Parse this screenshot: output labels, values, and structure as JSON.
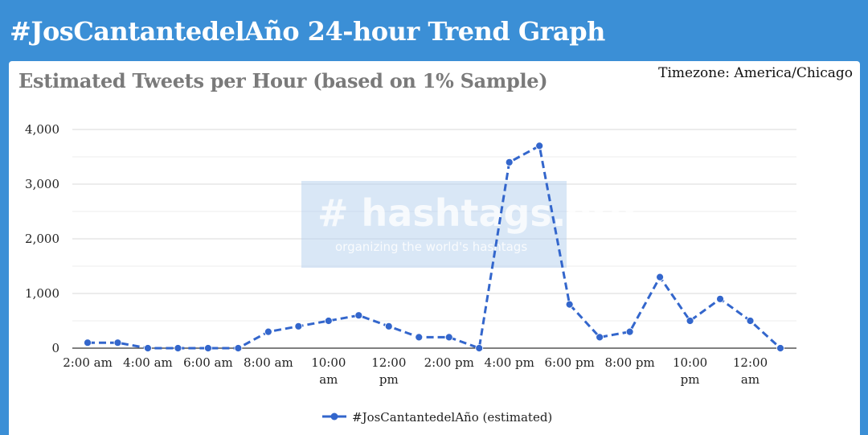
{
  "header": {
    "title": "#JosCantantedelAño 24-hour Trend Graph"
  },
  "panel": {
    "subtitle": "Estimated Tweets per Hour (based on 1% Sample)",
    "timezone": "Timezone: America/Chicago"
  },
  "watermark": {
    "brand": "# hashtags.org",
    "tagline": "organizing the world's hashtags"
  },
  "colors": {
    "header_bg": "#3b8fd6",
    "series": "#3366cc",
    "grid": "#d9d9d9"
  },
  "chart_data": {
    "type": "line",
    "x": [
      "2:00 am",
      "3:00 am",
      "4:00 am",
      "5:00 am",
      "6:00 am",
      "7:00 am",
      "8:00 am",
      "9:00 am",
      "10:00 am",
      "11:00 am",
      "12:00 pm",
      "1:00 pm",
      "2:00 pm",
      "3:00 pm",
      "4:00 pm",
      "5:00 pm",
      "6:00 pm",
      "7:00 pm",
      "8:00 pm",
      "9:00 pm",
      "10:00 pm",
      "11:00 pm",
      "12:00 am",
      "1:00 am"
    ],
    "x_tick_labels": [
      {
        "index": 0,
        "lines": [
          "2:00 am"
        ]
      },
      {
        "index": 2,
        "lines": [
          "4:00 am"
        ]
      },
      {
        "index": 4,
        "lines": [
          "6:00 am"
        ]
      },
      {
        "index": 6,
        "lines": [
          "8:00 am"
        ]
      },
      {
        "index": 8,
        "lines": [
          "10:00",
          "am"
        ]
      },
      {
        "index": 10,
        "lines": [
          "12:00",
          "pm"
        ]
      },
      {
        "index": 12,
        "lines": [
          "2:00 pm"
        ]
      },
      {
        "index": 14,
        "lines": [
          "4:00 pm"
        ]
      },
      {
        "index": 16,
        "lines": [
          "6:00 pm"
        ]
      },
      {
        "index": 18,
        "lines": [
          "8:00 pm"
        ]
      },
      {
        "index": 20,
        "lines": [
          "10:00",
          "pm"
        ]
      },
      {
        "index": 22,
        "lines": [
          "12:00",
          "am"
        ]
      }
    ],
    "series": [
      {
        "name": "#JosCantantedelAño (estimated)",
        "values": [
          100,
          100,
          0,
          0,
          0,
          0,
          300,
          400,
          500,
          600,
          400,
          200,
          200,
          0,
          3400,
          3700,
          800,
          200,
          300,
          1300,
          500,
          900,
          500,
          0
        ]
      }
    ],
    "ylim": [
      0,
      4000
    ],
    "y_ticks": [
      0,
      1000,
      2000,
      3000,
      4000
    ],
    "y_tick_labels": [
      "0",
      "1,000",
      "2,000",
      "3,000",
      "4,000"
    ],
    "grid": true,
    "legend_position": "bottom",
    "line_style": "dashed"
  }
}
